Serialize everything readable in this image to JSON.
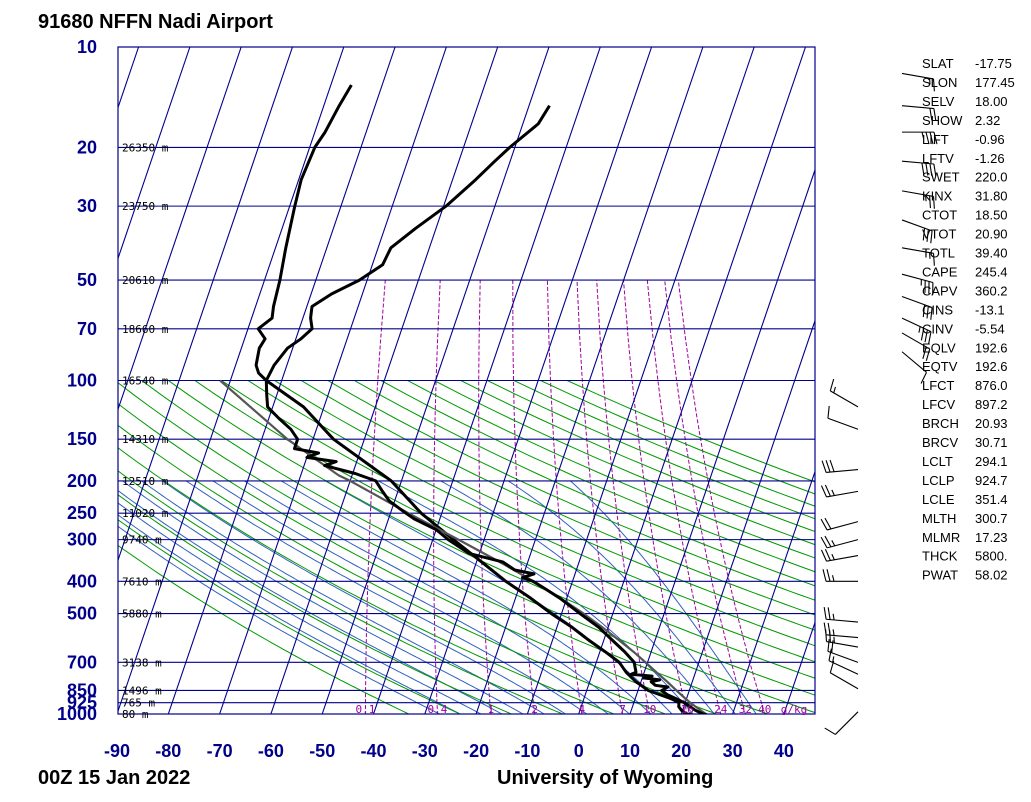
{
  "title": "91680 NFFN Nadi Airport",
  "date_label": "00Z 15 Jan 2022",
  "source_label": "University of Wyoming",
  "chart_data": {
    "type": "skew-t",
    "pressure_levels": [
      {
        "label": "10",
        "p": 10
      },
      {
        "label": "20",
        "p": 20
      },
      {
        "label": "30",
        "p": 30
      },
      {
        "label": "50",
        "p": 50
      },
      {
        "label": "70",
        "p": 70
      },
      {
        "label": "100",
        "p": 100
      },
      {
        "label": "150",
        "p": 150
      },
      {
        "label": "200",
        "p": 200
      },
      {
        "label": "250",
        "p": 250
      },
      {
        "label": "300",
        "p": 300
      },
      {
        "label": "400",
        "p": 400
      },
      {
        "label": "500",
        "p": 500
      },
      {
        "label": "700",
        "p": 700
      },
      {
        "label": "850",
        "p": 850
      },
      {
        "label": "925",
        "p": 925
      },
      {
        "label": "1000",
        "p": 1000
      }
    ],
    "temperature_ticks": [
      "-90",
      "-80",
      "-70",
      "-60",
      "-50",
      "-40",
      "-30",
      "-20",
      "-10",
      "0",
      "10",
      "20",
      "30",
      "40"
    ],
    "heights": [
      {
        "label": "26350 m",
        "p": 20
      },
      {
        "label": "23750 m",
        "p": 30
      },
      {
        "label": "20610 m",
        "p": 50
      },
      {
        "label": "18660 m",
        "p": 70
      },
      {
        "label": "16540 m",
        "p": 100
      },
      {
        "label": "14310 m",
        "p": 150
      },
      {
        "label": "12510 m",
        "p": 200
      },
      {
        "label": "11020 m",
        "p": 250
      },
      {
        "label": "9740 m",
        "p": 300
      },
      {
        "label": "7610 m",
        "p": 400
      },
      {
        "label": "5880 m",
        "p": 500
      },
      {
        "label": "3138 m",
        "p": 700
      },
      {
        "label": "1496 m",
        "p": 850
      },
      {
        "label": "765 m",
        "p": 925
      },
      {
        "label": "80 m",
        "p": 1000
      }
    ],
    "mixing_ratio_labels": [
      {
        "label": "0.1",
        "w": 0.1
      },
      {
        "label": "0.4",
        "w": 0.4
      },
      {
        "label": "1",
        "w": 1
      },
      {
        "label": "2",
        "w": 2
      },
      {
        "label": "4",
        "w": 4
      },
      {
        "label": "7",
        "w": 7
      },
      {
        "label": "10",
        "w": 10
      },
      {
        "label": "16",
        "w": 16
      },
      {
        "label": "24",
        "w": 24
      },
      {
        "label": "32",
        "w": 32
      },
      {
        "label": "40",
        "w": 40
      },
      {
        "label": "g/kg",
        "w": null
      }
    ],
    "temperature_profile": [
      [
        1004,
        25
      ],
      [
        1000,
        24.2
      ],
      [
        975,
        22.5
      ],
      [
        950,
        21.2
      ],
      [
        925,
        19.8
      ],
      [
        900,
        18
      ],
      [
        875,
        16
      ],
      [
        850,
        14.6
      ],
      [
        830,
        15.6
      ],
      [
        820,
        13
      ],
      [
        800,
        12
      ],
      [
        790,
        13.5
      ],
      [
        780,
        10.4
      ],
      [
        770,
        11.8
      ],
      [
        760,
        7.6
      ],
      [
        750,
        8.4
      ],
      [
        700,
        7.4
      ],
      [
        650,
        4.8
      ],
      [
        600,
        1.6
      ],
      [
        550,
        -1.8
      ],
      [
        500,
        -6.4
      ],
      [
        450,
        -11.3
      ],
      [
        420,
        -15
      ],
      [
        400,
        -17.7
      ],
      [
        390,
        -20
      ],
      [
        380,
        -18
      ],
      [
        370,
        -22
      ],
      [
        350,
        -24.9
      ],
      [
        330,
        -32
      ],
      [
        300,
        -37
      ],
      [
        280,
        -40
      ],
      [
        260,
        -45
      ],
      [
        250,
        -47
      ],
      [
        230,
        -51
      ],
      [
        215,
        -53
      ],
      [
        200,
        -55
      ],
      [
        190,
        -59.5
      ],
      [
        180,
        -66
      ],
      [
        175,
        -64
      ],
      [
        170,
        -70
      ],
      [
        165,
        -68
      ],
      [
        160,
        -73
      ],
      [
        150,
        -73
      ],
      [
        140,
        -75
      ],
      [
        130,
        -78
      ],
      [
        120,
        -81
      ],
      [
        110,
        -82
      ],
      [
        100,
        -83
      ],
      [
        90,
        -82.5
      ],
      [
        80,
        -81
      ],
      [
        75,
        -79
      ],
      [
        70,
        -77.5
      ],
      [
        65,
        -78.5
      ],
      [
        60,
        -79
      ],
      [
        55,
        -76
      ],
      [
        50,
        -71.5
      ],
      [
        45,
        -68
      ],
      [
        40,
        -67.5
      ],
      [
        35,
        -64
      ],
      [
        30,
        -59.5
      ],
      [
        25,
        -55.5
      ],
      [
        22,
        -53
      ],
      [
        20,
        -51
      ],
      [
        17,
        -47
      ],
      [
        15,
        -46
      ]
    ],
    "dewpoint_profile": [
      [
        1004,
        22
      ],
      [
        1000,
        21
      ],
      [
        975,
        19.8
      ],
      [
        950,
        19
      ],
      [
        925,
        18.8
      ],
      [
        900,
        17
      ],
      [
        850,
        12
      ],
      [
        800,
        9
      ],
      [
        750,
        6.5
      ],
      [
        700,
        4.5
      ],
      [
        650,
        1
      ],
      [
        600,
        -3
      ],
      [
        550,
        -7
      ],
      [
        500,
        -12
      ],
      [
        450,
        -17
      ],
      [
        400,
        -23
      ],
      [
        350,
        -29
      ],
      [
        300,
        -36
      ],
      [
        250,
        -44
      ],
      [
        200,
        -52
      ],
      [
        150,
        -66
      ],
      [
        120,
        -74
      ],
      [
        100,
        -83
      ],
      [
        95,
        -85
      ],
      [
        90,
        -86
      ],
      [
        80,
        -86.5
      ],
      [
        75,
        -86
      ],
      [
        70,
        -88
      ],
      [
        65,
        -86
      ],
      [
        60,
        -86.5
      ],
      [
        50,
        -87
      ],
      [
        40,
        -88
      ],
      [
        30,
        -89
      ],
      [
        25,
        -89.5
      ],
      [
        20,
        -89
      ],
      [
        18,
        -88
      ],
      [
        15,
        -87
      ],
      [
        13,
        -86
      ]
    ],
    "parcel_profile": [
      [
        1004,
        25
      ],
      [
        950,
        22.3
      ],
      [
        924.7,
        21.0
      ],
      [
        900,
        19.8
      ],
      [
        850,
        17.5
      ],
      [
        800,
        15.1
      ],
      [
        750,
        12.4
      ],
      [
        700,
        9.6
      ],
      [
        650,
        6.5
      ],
      [
        600,
        2.9
      ],
      [
        550,
        -1.1
      ],
      [
        500,
        -5.7
      ],
      [
        450,
        -11.2
      ],
      [
        400,
        -17.6
      ],
      [
        350,
        -25.5
      ],
      [
        300,
        -35
      ],
      [
        250,
        -46.5
      ],
      [
        200,
        -60
      ],
      [
        192.6,
        -62.6
      ],
      [
        150,
        -75
      ],
      [
        100,
        -92
      ]
    ],
    "wind_barbs": [
      {
        "p": 12,
        "dir": 100,
        "spd": 15
      },
      {
        "p": 15,
        "dir": 95,
        "spd": 20
      },
      {
        "p": 18,
        "dir": 90,
        "spd": 35
      },
      {
        "p": 22,
        "dir": 95,
        "spd": 40
      },
      {
        "p": 27,
        "dir": 100,
        "spd": 25
      },
      {
        "p": 33,
        "dir": 110,
        "spd": 30
      },
      {
        "p": 40,
        "dir": 100,
        "spd": 15
      },
      {
        "p": 48,
        "dir": 105,
        "spd": 35
      },
      {
        "p": 56,
        "dir": 110,
        "spd": 30
      },
      {
        "p": 65,
        "dir": 115,
        "spd": 35
      },
      {
        "p": 72,
        "dir": 120,
        "spd": 20
      },
      {
        "p": 82,
        "dir": 130,
        "spd": 10
      },
      {
        "p": 120,
        "dir": 300,
        "spd": 15
      },
      {
        "p": 140,
        "dir": 290,
        "spd": 10
      },
      {
        "p": 185,
        "dir": 265,
        "spd": 30
      },
      {
        "p": 215,
        "dir": 260,
        "spd": 25
      },
      {
        "p": 265,
        "dir": 255,
        "spd": 20
      },
      {
        "p": 300,
        "dir": 255,
        "spd": 25
      },
      {
        "p": 335,
        "dir": 260,
        "spd": 25
      },
      {
        "p": 400,
        "dir": 270,
        "spd": 25
      },
      {
        "p": 530,
        "dir": 275,
        "spd": 25
      },
      {
        "p": 590,
        "dir": 275,
        "spd": 25
      },
      {
        "p": 630,
        "dir": 280,
        "spd": 25
      },
      {
        "p": 700,
        "dir": 290,
        "spd": 20
      },
      {
        "p": 760,
        "dir": 295,
        "spd": 15
      },
      {
        "p": 840,
        "dir": 300,
        "spd": 10
      },
      {
        "p": 985,
        "dir": 225,
        "spd": 10
      }
    ]
  },
  "indices": [
    {
      "name": "SLAT",
      "value": "-17.75"
    },
    {
      "name": "SLON",
      "value": "177.45"
    },
    {
      "name": "SELV",
      "value": "18.00"
    },
    {
      "name": "SHOW",
      "value": "2.32"
    },
    {
      "name": "LIFT",
      "value": "-0.96"
    },
    {
      "name": "LFTV",
      "value": "-1.26"
    },
    {
      "name": "SWET",
      "value": "220.0"
    },
    {
      "name": "KINX",
      "value": "31.80"
    },
    {
      "name": "CTOT",
      "value": "18.50"
    },
    {
      "name": "VTOT",
      "value": "20.90"
    },
    {
      "name": "TOTL",
      "value": "39.40"
    },
    {
      "name": "CAPE",
      "value": "245.4"
    },
    {
      "name": "CAPV",
      "value": "360.2"
    },
    {
      "name": "CINS",
      "value": "-13.1"
    },
    {
      "name": "CINV",
      "value": "-5.54"
    },
    {
      "name": "EQLV",
      "value": "192.6"
    },
    {
      "name": "EQTV",
      "value": "192.6"
    },
    {
      "name": "LFCT",
      "value": "876.0"
    },
    {
      "name": "LFCV",
      "value": "897.2"
    },
    {
      "name": "BRCH",
      "value": "20.93"
    },
    {
      "name": "BRCV",
      "value": "30.71"
    },
    {
      "name": "LCLT",
      "value": "294.1"
    },
    {
      "name": "LCLP",
      "value": "924.7"
    },
    {
      "name": "LCLE",
      "value": "351.4"
    },
    {
      "name": "MLTH",
      "value": "300.7"
    },
    {
      "name": "MLMR",
      "value": "17.23"
    },
    {
      "name": "THCK",
      "value": "5800."
    },
    {
      "name": "PWAT",
      "value": "58.02"
    }
  ],
  "colors": {
    "frame": "#00008b",
    "isotherm": "#00008b",
    "dry_adiabat": "#009900",
    "moist_adiabat": "#3060c0",
    "mixing_ratio": "#a000a0",
    "temperature": "#000000",
    "dewpoint": "#000000",
    "parcel": "#555555",
    "label": "#00008b"
  }
}
